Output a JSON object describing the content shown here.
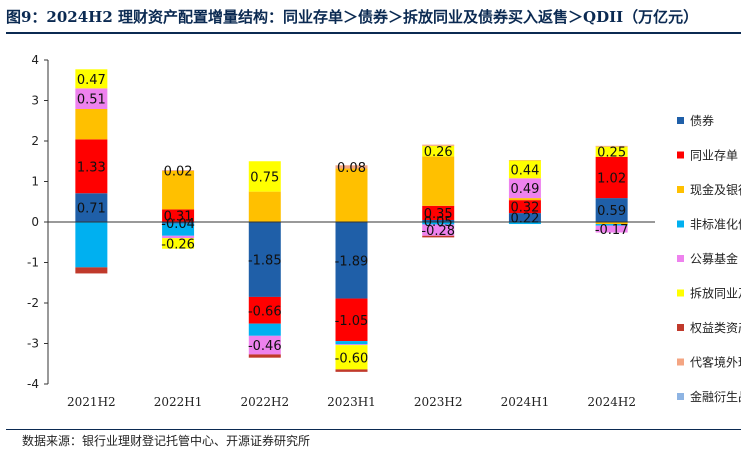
{
  "title": "图9：2024H2 理财资产配置增量结构：同业存单＞债券＞拆放同业及债券买入返售＞QDII（万亿元）",
  "source": "数据来源：银行业理财登记托管中心、开源证券研究所",
  "chart_data": {
    "type": "bar",
    "stacked": true,
    "categories": [
      "2021H2",
      "2022H1",
      "2022H2",
      "2023H1",
      "2023H2",
      "2024H1",
      "2024H2"
    ],
    "ylim": [
      -4,
      4
    ],
    "yticks": [
      -4,
      -3,
      -2,
      -1,
      0,
      1,
      2,
      3,
      4
    ],
    "grid": false,
    "legend": "right",
    "series": [
      {
        "name": "债券",
        "color": "#1f5fa8",
        "values": [
          0.71,
          -0.04,
          -1.85,
          -1.89,
          0.05,
          0.22,
          0.59
        ]
      },
      {
        "name": "同业存单",
        "color": "#ff0000",
        "values": [
          1.33,
          0.31,
          -0.66,
          -1.05,
          0.35,
          0.32,
          1.02
        ]
      },
      {
        "name": "现金及银行存款",
        "color": "#ffc000",
        "values": [
          0.75,
          0.95,
          0.75,
          1.32,
          1.22,
          0.05,
          -0.05
        ]
      },
      {
        "name": "非标准化债权类资产",
        "color": "#00b0f0",
        "values": [
          -1.12,
          -0.3,
          -0.3,
          -0.08,
          -0.06,
          -0.05,
          -0.04
        ]
      },
      {
        "name": "公募基金",
        "color": "#ee82ee",
        "values": [
          0.51,
          -0.06,
          -0.46,
          -0.02,
          -0.28,
          0.49,
          -0.17
        ]
      },
      {
        "name": "拆放同业及债券买入返售",
        "color": "#ffff00",
        "values": [
          0.47,
          -0.26,
          0.75,
          -0.6,
          0.26,
          0.44,
          0.25
        ]
      },
      {
        "name": "权益类资产",
        "color": "#c0392b",
        "values": [
          -0.15,
          0.0,
          -0.08,
          -0.06,
          -0.04,
          0.0,
          0.0
        ]
      },
      {
        "name": "代客境外理财投资QDII",
        "color": "#f4a582",
        "values": [
          0.0,
          0.02,
          0.0,
          0.08,
          0.03,
          0.01,
          0.02
        ]
      },
      {
        "name": "金融衍生品",
        "color": "#8eb4e3",
        "values": [
          0.0,
          0.0,
          0.0,
          0.0,
          0.0,
          0.0,
          0.0
        ]
      }
    ],
    "data_labels": [
      {
        "category": 0,
        "series": 0,
        "text": "0.71"
      },
      {
        "category": 0,
        "series": 1,
        "text": "1.33"
      },
      {
        "category": 0,
        "series": 4,
        "text": "0.51"
      },
      {
        "category": 0,
        "series": 5,
        "text": "0.47"
      },
      {
        "category": 1,
        "series": 7,
        "text": "0.02"
      },
      {
        "category": 1,
        "series": 1,
        "text": "0.31"
      },
      {
        "category": 1,
        "series": 0,
        "text": "-0.04"
      },
      {
        "category": 1,
        "series": 5,
        "text": "-0.26"
      },
      {
        "category": 2,
        "series": 5,
        "text": "0.75"
      },
      {
        "category": 2,
        "series": 0,
        "text": "-1.85"
      },
      {
        "category": 2,
        "series": 1,
        "text": "-0.66"
      },
      {
        "category": 2,
        "series": 4,
        "text": "-0.46"
      },
      {
        "category": 3,
        "series": 7,
        "text": "0.08"
      },
      {
        "category": 3,
        "series": 0,
        "text": "-1.89"
      },
      {
        "category": 3,
        "series": 1,
        "text": "-1.05"
      },
      {
        "category": 3,
        "series": 5,
        "text": "-0.60"
      },
      {
        "category": 4,
        "series": 5,
        "text": "0.26"
      },
      {
        "category": 4,
        "series": 1,
        "text": "0.35"
      },
      {
        "category": 4,
        "series": 0,
        "text": "0.05"
      },
      {
        "category": 4,
        "series": 4,
        "text": "-0.28"
      },
      {
        "category": 5,
        "series": 5,
        "text": "0.44"
      },
      {
        "category": 5,
        "series": 4,
        "text": "0.49"
      },
      {
        "category": 5,
        "series": 1,
        "text": "0.32"
      },
      {
        "category": 5,
        "series": 0,
        "text": "0.22"
      },
      {
        "category": 6,
        "series": 5,
        "text": "0.25"
      },
      {
        "category": 6,
        "series": 1,
        "text": "1.02"
      },
      {
        "category": 6,
        "series": 0,
        "text": "0.59"
      },
      {
        "category": 6,
        "series": 4,
        "text": "-0.17"
      }
    ]
  }
}
